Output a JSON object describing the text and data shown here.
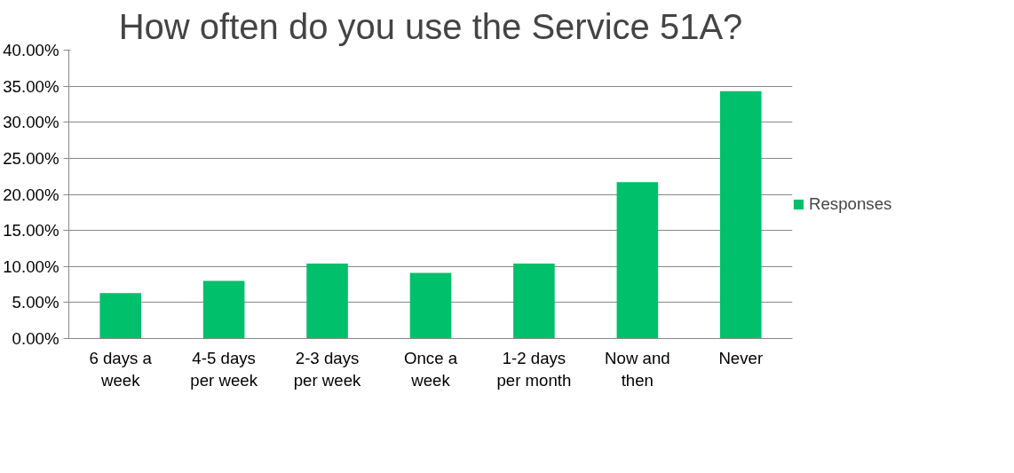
{
  "chart_data": {
    "type": "bar",
    "title": "How often do you use the Service 51A?",
    "categories": [
      "6 days a week",
      "4-5 days per week",
      "2-3 days per week",
      "Once a week",
      "1-2 days per month",
      "Now and then",
      "Never"
    ],
    "series": [
      {
        "name": "Responses",
        "color": "#00c06b",
        "values": [
          6.3,
          8.0,
          10.4,
          9.1,
          10.4,
          21.7,
          34.3
        ]
      }
    ],
    "ylim": [
      0,
      40
    ],
    "yticks": [
      {
        "value": 0,
        "label": "0.00%"
      },
      {
        "value": 5,
        "label": "5.00%"
      },
      {
        "value": 10,
        "label": "10.00%"
      },
      {
        "value": 15,
        "label": "15.00%"
      },
      {
        "value": 20,
        "label": "20.00%"
      },
      {
        "value": 25,
        "label": "25.00%"
      },
      {
        "value": 30,
        "label": "30.00%"
      },
      {
        "value": 35,
        "label": "35.00%"
      },
      {
        "value": 40,
        "label": "40.00%"
      }
    ],
    "grid": "y",
    "legend": "right"
  }
}
